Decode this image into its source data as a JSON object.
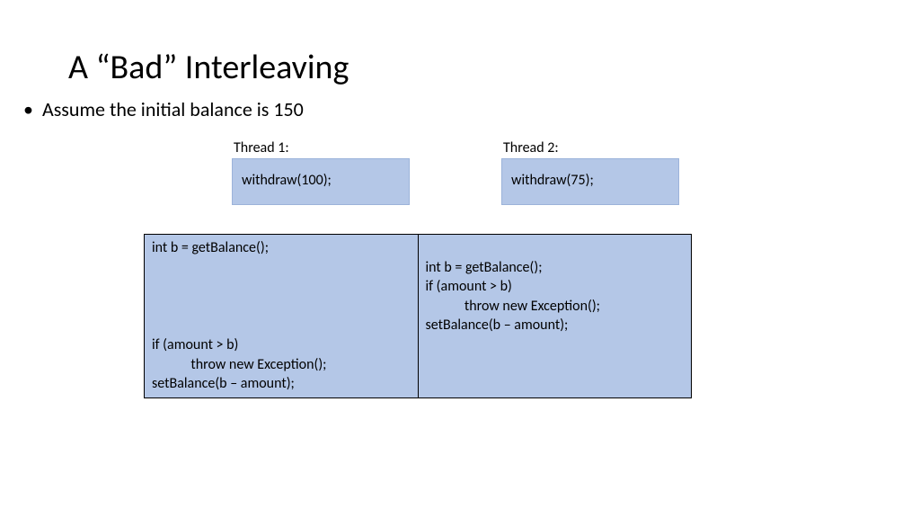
{
  "colors": {
    "box_fill": "#b4c7e7",
    "box_border": "#9cb3da",
    "table_fill": "#b4c7e7",
    "table_border": "#000000",
    "text": "#000000",
    "background": "#ffffff"
  },
  "fonts": {
    "title_size_pt": 28,
    "body_size_pt": 16,
    "code_size_pt": 12,
    "family": "Calibri"
  },
  "title": "A “Bad” Interleaving",
  "bullet": "Assume the initial balance is 150",
  "threads": {
    "t1": {
      "label": "Thread 1:",
      "call": "withdraw(100);"
    },
    "t2": {
      "label": "Thread 2:",
      "call": "withdraw(75);"
    }
  },
  "interleaving": {
    "type": "table",
    "columns": [
      "Thread 1",
      "Thread 2"
    ],
    "left_lines": [
      "int b = getBalance();",
      "",
      "",
      "",
      "",
      "if (amount > b)",
      "            throw new Exception();",
      "setBalance(b – amount);"
    ],
    "right_lines": [
      "",
      "int b = getBalance();",
      "if (amount > b)",
      "            throw new Exception();",
      "setBalance(b – amount);",
      "",
      "",
      ""
    ]
  }
}
